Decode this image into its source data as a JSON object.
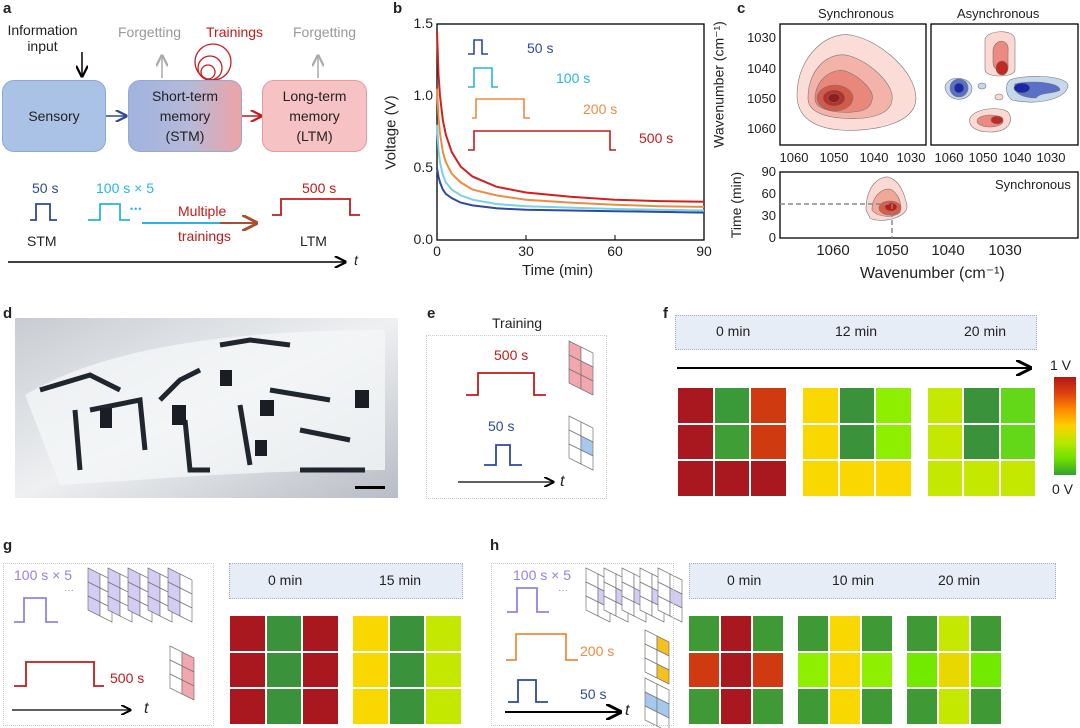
{
  "labels": {
    "a": "a",
    "b": "b",
    "c": "c",
    "d": "d",
    "e": "e",
    "f": "f",
    "g": "g",
    "h": "h"
  },
  "panel_a": {
    "info_input": "Information input",
    "forgetting_1": "Forgetting",
    "trainings": "Trainings",
    "forgetting_2": "Forgetting",
    "sensory": "Sensory",
    "stm_box": [
      "Short-term",
      "memory",
      "(STM)"
    ],
    "ltm_box": [
      "Long-term",
      "memory",
      "(LTM)"
    ],
    "pulse_50": "50 s",
    "pulse_100": "100 s × 5",
    "dots": "•••",
    "multiple": "Multiple",
    "trainings_lbl": "trainings",
    "pulse_500": "500 s",
    "stm": "STM",
    "ltm": "LTM",
    "t": "t",
    "colors": {
      "sensory": "#a9c2e6",
      "ltm": "#f6c2c4",
      "p50": "#2d4a9a",
      "p100": "#27b4e8",
      "p500": "#c21b1b"
    }
  },
  "chart_data": [
    {
      "type": "line",
      "xlabel": "Time (min)",
      "ylabel": "Voltage (V)",
      "xlim": [
        0,
        90
      ],
      "ylim": [
        0,
        1.5
      ],
      "xticks": [
        "0",
        "30",
        "60",
        "90"
      ],
      "yticks": [
        "0.0",
        "0.5",
        "1.0",
        "1.5"
      ],
      "x": [
        0,
        0.5,
        1,
        2,
        3,
        5,
        8,
        12,
        20,
        30,
        45,
        60,
        75,
        90
      ],
      "series": [
        {
          "name": "50 s",
          "color": "#2d4aa0",
          "values": [
            0.5,
            0.44,
            0.4,
            0.35,
            0.32,
            0.29,
            0.26,
            0.24,
            0.22,
            0.21,
            0.205,
            0.2,
            0.195,
            0.19
          ]
        },
        {
          "name": "100 s",
          "color": "#7ecfe0",
          "values": [
            0.8,
            0.62,
            0.54,
            0.45,
            0.4,
            0.35,
            0.31,
            0.28,
            0.25,
            0.235,
            0.225,
            0.215,
            0.21,
            0.205
          ]
        },
        {
          "name": "200 s",
          "color": "#f08a40",
          "values": [
            1.05,
            0.85,
            0.74,
            0.61,
            0.54,
            0.46,
            0.4,
            0.35,
            0.31,
            0.28,
            0.26,
            0.245,
            0.235,
            0.23
          ]
        },
        {
          "name": "500 s",
          "color": "#d02020",
          "values": [
            1.45,
            1.15,
            1.0,
            0.83,
            0.73,
            0.61,
            0.51,
            0.44,
            0.37,
            0.33,
            0.3,
            0.28,
            0.27,
            0.265
          ]
        }
      ]
    },
    {
      "type": "heatmap",
      "title": "Synchronous",
      "ylabel": "Wavenumber (cm⁻¹)",
      "xticks": [
        "1060",
        "1050",
        "1040",
        "1030"
      ],
      "yticks": [
        "1030",
        "1040",
        "1050",
        "1060"
      ],
      "peak": [
        1050,
        1050
      ]
    },
    {
      "type": "heatmap",
      "title": "Asynchronous",
      "xticks": [
        "1060",
        "1050",
        "1040",
        "1030"
      ]
    },
    {
      "type": "heatmap",
      "title": "Synchronous",
      "xlabel": "Wavenumber (cm⁻¹)",
      "ylabel": "Time (min)",
      "xticks": [
        "1060",
        "1050",
        "1040",
        "1030"
      ],
      "yticks": [
        "0",
        "30",
        "60",
        "90"
      ],
      "peak": [
        1050,
        45
      ]
    }
  ],
  "panel_e": {
    "title": "Training",
    "p500": "500 s",
    "p50": "50 s",
    "t": "t"
  },
  "panel_f": {
    "times": [
      "0 min",
      "12 min",
      "20 min"
    ],
    "cbar_max": "1 V",
    "cbar_min": "0 V",
    "grids": [
      [
        "#a8181e",
        "#3a9a3a",
        "#d03a10",
        "#a8181e",
        "#3f9e35",
        "#d03a10",
        "#a8181e",
        "#a8181e",
        "#a8181e"
      ],
      [
        "#f8d800",
        "#3a933a",
        "#8ef000",
        "#f8d800",
        "#3a933a",
        "#8ef000",
        "#f8d800",
        "#f8d800",
        "#f8d800"
      ],
      [
        "#c4e800",
        "#3a933a",
        "#62d818",
        "#c4e800",
        "#3a933a",
        "#62d818",
        "#c4e800",
        "#c4e800",
        "#c4e800"
      ]
    ]
  },
  "panel_g": {
    "p100": "100 s × 5",
    "dots": "···",
    "p500": "500 s",
    "t": "t",
    "times": [
      "0 min",
      "15 min"
    ],
    "grids": [
      [
        "#a8181e",
        "#3a933a",
        "#a8181e",
        "#a8181e",
        "#3a933a",
        "#a8181e",
        "#a8181e",
        "#3a933a",
        "#a8181e"
      ],
      [
        "#f8d800",
        "#3a933a",
        "#c4e800",
        "#f8d800",
        "#3a933a",
        "#c4e800",
        "#f8d800",
        "#3a933a",
        "#c4e800"
      ]
    ]
  },
  "panel_h": {
    "p100": "100 s × 5",
    "dots": "···",
    "p200": "200 s",
    "p50": "50 s",
    "t": "t",
    "times": [
      "0 min",
      "10 min",
      "20 min"
    ],
    "grids": [
      [
        "#3f9a35",
        "#a8181e",
        "#3f9a35",
        "#d03a10",
        "#a8181e",
        "#d03a10",
        "#3f9a35",
        "#a8181e",
        "#3f9a35"
      ],
      [
        "#3f9a35",
        "#f8d800",
        "#3f9a35",
        "#8ef000",
        "#f8d800",
        "#8ef000",
        "#3f9a35",
        "#f8d800",
        "#3f9a35"
      ],
      [
        "#3f9a35",
        "#c4e800",
        "#3f9a35",
        "#72ea00",
        "#e8d800",
        "#72ea00",
        "#3f9a35",
        "#c4e800",
        "#3f9a35"
      ]
    ]
  }
}
